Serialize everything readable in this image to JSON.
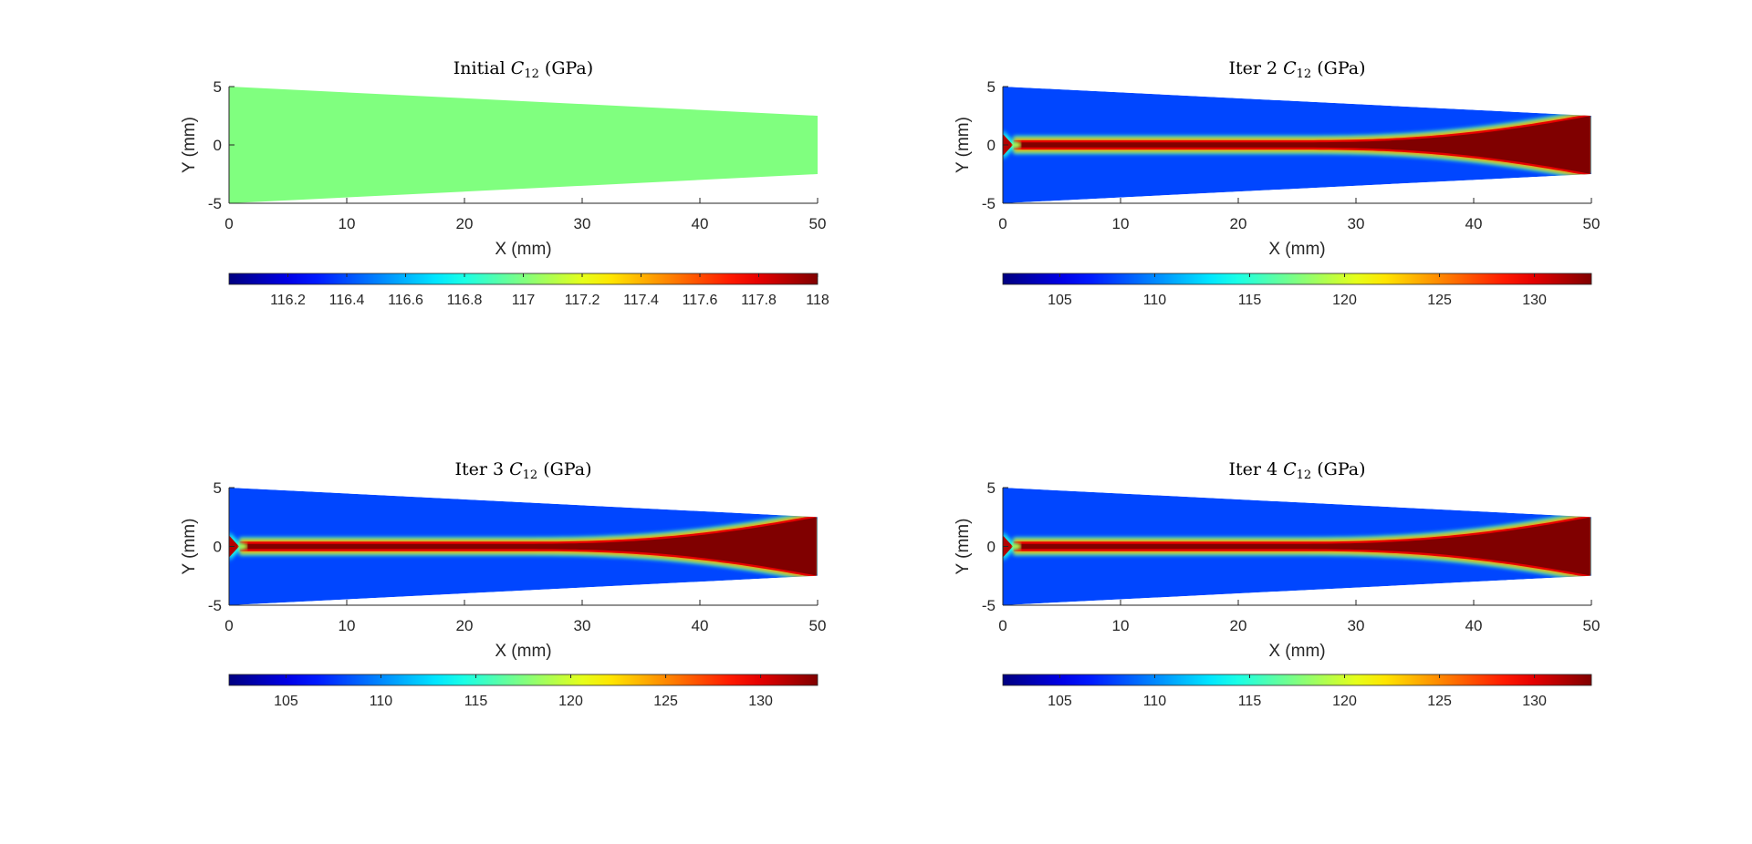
{
  "chart_data": [
    {
      "type": "heatmap",
      "title": "Initial C12 (GPa)",
      "title_parts": {
        "prefix": "Initial ",
        "symbol": "C",
        "subscript": "12",
        "suffix": " (GPa)"
      },
      "xlabel": "X (mm)",
      "ylabel": "Y (mm)",
      "xlim": [
        0,
        50
      ],
      "ylim": [
        -5,
        5
      ],
      "xticks": [
        "0",
        "10",
        "20",
        "30",
        "40",
        "50"
      ],
      "yticks": [
        "5",
        "0",
        "-5"
      ],
      "domain": {
        "left_half_height_mm": 5,
        "right_half_height_mm": 2.5
      },
      "field": "uniform",
      "value": 117,
      "colormap": "jet",
      "colorbar": {
        "range": [
          116,
          118
        ],
        "ticks": [
          "116.2",
          "116.4",
          "116.6",
          "116.8",
          "117",
          "117.2",
          "117.4",
          "117.6",
          "117.8",
          "118"
        ]
      }
    },
    {
      "type": "heatmap",
      "title": "Iter 2 C12 (GPa)",
      "title_parts": {
        "prefix": "Iter 2 ",
        "symbol": "C",
        "subscript": "12",
        "suffix": " (GPa)"
      },
      "xlabel": "X (mm)",
      "ylabel": "Y (mm)",
      "xlim": [
        0,
        50
      ],
      "ylim": [
        -5,
        5
      ],
      "xticks": [
        "0",
        "10",
        "20",
        "30",
        "40",
        "50"
      ],
      "yticks": [
        "5",
        "0",
        "-5"
      ],
      "domain": {
        "left_half_height_mm": 5,
        "right_half_height_mm": 2.5
      },
      "field": "background ~108 GPa with a ~133 GPa central band along Y=0 widening to the full height at X=50",
      "background_value": 108,
      "band_value": 133,
      "colormap": "jet",
      "colorbar": {
        "range": [
          102,
          133
        ],
        "ticks": [
          "105",
          "110",
          "115",
          "120",
          "125",
          "130"
        ]
      }
    },
    {
      "type": "heatmap",
      "title": "Iter 3 C12 (GPa)",
      "title_parts": {
        "prefix": "Iter 3 ",
        "symbol": "C",
        "subscript": "12",
        "suffix": " (GPa)"
      },
      "xlabel": "X (mm)",
      "ylabel": "Y (mm)",
      "xlim": [
        0,
        50
      ],
      "ylim": [
        -5,
        5
      ],
      "xticks": [
        "0",
        "10",
        "20",
        "30",
        "40",
        "50"
      ],
      "yticks": [
        "5",
        "0",
        "-5"
      ],
      "domain": {
        "left_half_height_mm": 5,
        "right_half_height_mm": 2.5
      },
      "field": "background ~108 GPa with a ~133 GPa central band along Y=0 widening to the full height at X=50",
      "background_value": 108,
      "band_value": 133,
      "colormap": "jet",
      "colorbar": {
        "range": [
          102,
          133
        ],
        "ticks": [
          "105",
          "110",
          "115",
          "120",
          "125",
          "130"
        ]
      }
    },
    {
      "type": "heatmap",
      "title": "Iter 4 C12 (GPa)",
      "title_parts": {
        "prefix": "Iter 4 ",
        "symbol": "C",
        "subscript": "12",
        "suffix": " (GPa)"
      },
      "xlabel": "X (mm)",
      "ylabel": "Y (mm)",
      "xlim": [
        0,
        50
      ],
      "ylim": [
        -5,
        5
      ],
      "xticks": [
        "0",
        "10",
        "20",
        "30",
        "40",
        "50"
      ],
      "yticks": [
        "5",
        "0",
        "-5"
      ],
      "domain": {
        "left_half_height_mm": 5,
        "right_half_height_mm": 2.5
      },
      "field": "background ~108 GPa with a ~133 GPa central band along Y=0 widening to the full height at X=50",
      "background_value": 108,
      "band_value": 133,
      "colormap": "jet",
      "colorbar": {
        "range": [
          102,
          133
        ],
        "ticks": [
          "105",
          "110",
          "115",
          "120",
          "125",
          "130"
        ]
      }
    }
  ]
}
